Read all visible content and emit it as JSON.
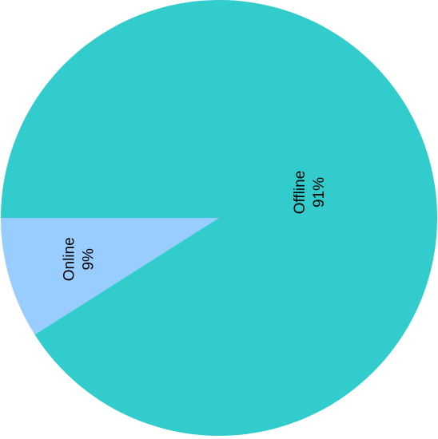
{
  "chart_data": {
    "type": "pie",
    "title": "",
    "slices": [
      {
        "label": "Online",
        "value": 9,
        "display_value": "9%",
        "color": "#99ccff"
      },
      {
        "label": "Offline",
        "value": 91,
        "display_value": "91%",
        "color": "#33cccc"
      }
    ],
    "start_angle_deg": 180,
    "direction": "counterclockwise",
    "label_orientation": "vertical",
    "legend": "none"
  }
}
